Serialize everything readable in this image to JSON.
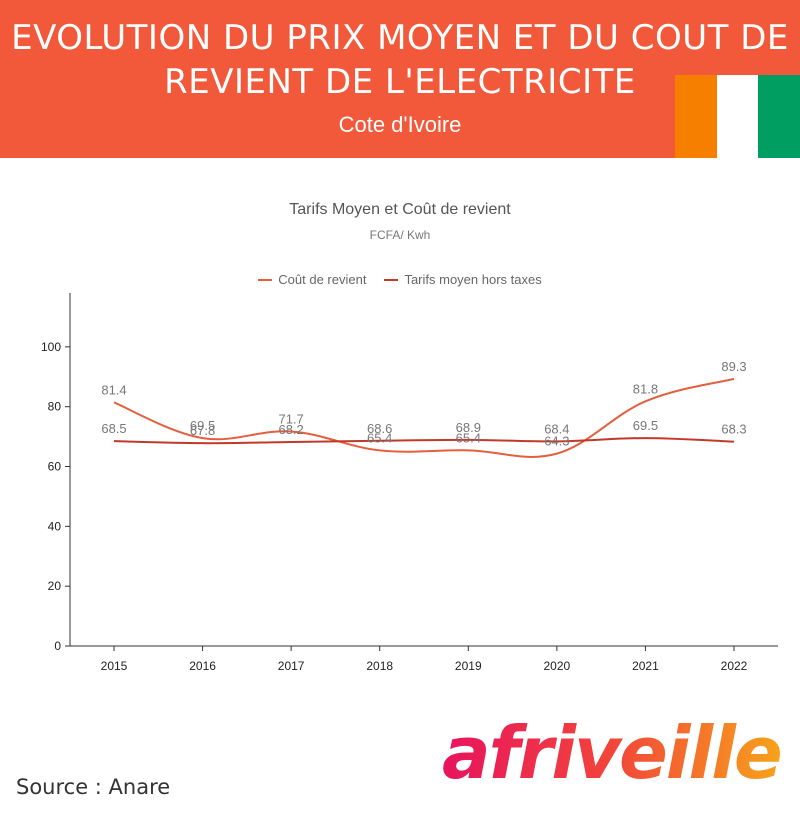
{
  "header": {
    "title": "EVOLUTION DU PRIX MOYEN ET DU COUT DE REVIENT DE L'ELECTRICITE",
    "subtitle": "Cote d'Ivoire",
    "banner_color": "#f2593a",
    "flag_colors": [
      "#f77f00",
      "#ffffff",
      "#009e60"
    ]
  },
  "footer": {
    "source": "Source : Anare",
    "logo_text": "afriveille"
  },
  "chart_data": {
    "type": "line",
    "title": "Tarifs Moyen et Coût de revient",
    "subtitle": "FCFA/ Kwh",
    "xlabel": "",
    "ylabel": "",
    "categories": [
      "2015",
      "2016",
      "2017",
      "2018",
      "2019",
      "2020",
      "2021",
      "2022"
    ],
    "ylim": [
      0,
      118
    ],
    "yticks": [
      0,
      20,
      40,
      60,
      80,
      100
    ],
    "grid": false,
    "legend_position": "top",
    "series": [
      {
        "name": "Coût de revient",
        "color": "#e35f3e",
        "values": [
          81.4,
          69.5,
          71.7,
          65.4,
          65.4,
          64.3,
          81.8,
          89.3
        ],
        "labels": [
          "81.4",
          "69.5",
          "71.7",
          "65.4",
          "65.4",
          "64.3",
          "81.8",
          "89.3"
        ]
      },
      {
        "name": "Tarifs moyen hors taxes",
        "color": "#c0392b",
        "values": [
          68.5,
          67.8,
          68.2,
          68.6,
          68.9,
          68.4,
          69.5,
          68.3
        ],
        "labels": [
          "68.5",
          "67.8",
          "68.2",
          "68.6",
          "68.9",
          "68.4",
          "69.5",
          "68.3"
        ]
      }
    ]
  }
}
